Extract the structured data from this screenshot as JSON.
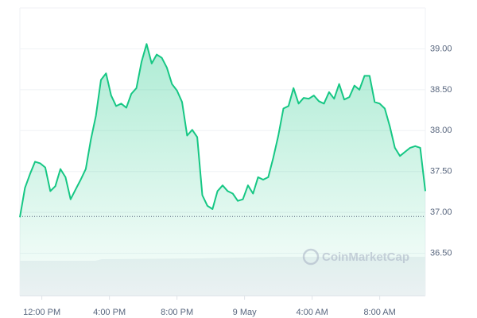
{
  "chart_data": {
    "type": "line",
    "color": "#16c784",
    "grid": true,
    "watermark": "CoinMarketCap",
    "baseline": 36.95,
    "x": [
      -1.3,
      -1,
      -0.7,
      -0.4,
      -0.1,
      0.2,
      0.5,
      0.8,
      1.1,
      1.4,
      1.7,
      2,
      2.3,
      2.6,
      2.9,
      3.2,
      3.5,
      3.8,
      4.1,
      4.4,
      4.7,
      5,
      5.3,
      5.6,
      5.9,
      6.2,
      6.5,
      6.8,
      7.1,
      7.4,
      7.7,
      8,
      8.3,
      8.6,
      8.9,
      9.2,
      9.5,
      9.8,
      10.1,
      10.4,
      10.7,
      11,
      11.3,
      11.6,
      11.9,
      12.2,
      12.5,
      12.8,
      13.1,
      13.4,
      13.7,
      14,
      14.3,
      14.6,
      14.9,
      15.2,
      15.5,
      15.8,
      16.1,
      16.4,
      16.7,
      17,
      17.3,
      17.6,
      17.9,
      18.2,
      18.5,
      18.8,
      19.1,
      19.4,
      19.7,
      20,
      20.3,
      20.6,
      20.9,
      21.2,
      21.5,
      21.8,
      22.1,
      22.4,
      22.7
    ],
    "values": [
      36.94,
      37.3,
      37.47,
      37.62,
      37.6,
      37.55,
      37.26,
      37.32,
      37.53,
      37.43,
      37.16,
      37.28,
      37.4,
      37.53,
      37.89,
      38.18,
      38.62,
      38.7,
      38.43,
      38.3,
      38.33,
      38.28,
      38.45,
      38.52,
      38.84,
      39.06,
      38.82,
      38.93,
      38.89,
      38.77,
      38.57,
      38.49,
      38.35,
      37.94,
      38.01,
      37.92,
      37.21,
      37.08,
      37.04,
      37.26,
      37.33,
      37.26,
      37.23,
      37.14,
      37.16,
      37.33,
      37.23,
      37.43,
      37.4,
      37.43,
      37.67,
      37.94,
      38.27,
      38.3,
      38.52,
      38.33,
      38.4,
      38.39,
      38.43,
      38.36,
      38.33,
      38.47,
      38.39,
      38.57,
      38.38,
      38.41,
      38.55,
      38.5,
      38.67,
      38.67,
      38.35,
      38.33,
      38.27,
      38.05,
      37.79,
      37.69,
      37.74,
      37.79,
      37.81,
      37.79,
      37.26
    ],
    "xlim": [
      -1.3,
      22.7
    ],
    "xticks": [
      {
        "value": 0,
        "label": "12:00 PM"
      },
      {
        "value": 4,
        "label": "4:00 PM"
      },
      {
        "value": 8,
        "label": "8:00 PM"
      },
      {
        "value": 12,
        "label": "9 May"
      },
      {
        "value": 16,
        "label": "4:00 AM"
      },
      {
        "value": 20,
        "label": "8:00 AM"
      }
    ],
    "ylim": [
      36,
      39.5
    ],
    "yticks": [
      {
        "value": 36.5,
        "label": "36.50"
      },
      {
        "value": 37,
        "label": "37.00"
      },
      {
        "value": 37.5,
        "label": "37.50"
      },
      {
        "value": 38,
        "label": "38.00"
      },
      {
        "value": 38.5,
        "label": "38.50"
      },
      {
        "value": 39,
        "label": "39.00"
      }
    ]
  }
}
